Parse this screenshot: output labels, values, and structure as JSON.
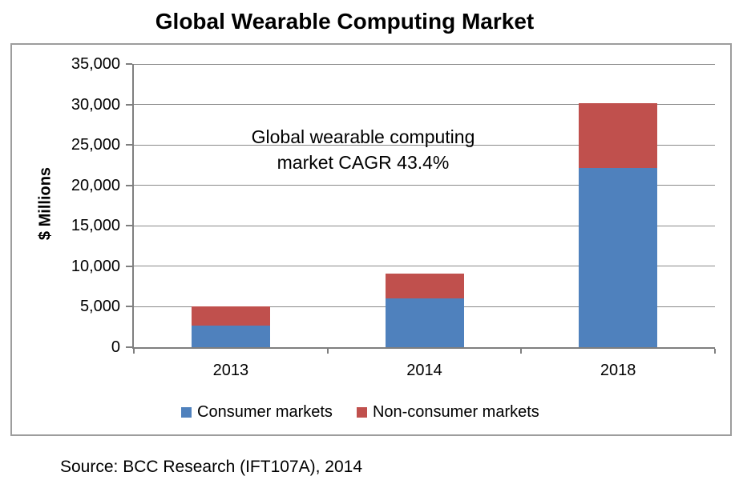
{
  "title": "Global Wearable Computing Market",
  "source": "Source: BCC Research (IFT107A), 2014",
  "chart_data": {
    "type": "bar",
    "stacked": true,
    "title": "Global Wearable Computing Market",
    "categories": [
      "2013",
      "2014",
      "2018"
    ],
    "series": [
      {
        "name": "Consumer markets",
        "color": "#4F81BD",
        "values": [
          2700,
          6000,
          22100
        ]
      },
      {
        "name": "Non-consumer markets",
        "color": "#C0504D",
        "values": [
          2300,
          3100,
          8100
        ]
      }
    ],
    "xlabel": "",
    "ylabel": "$ Millions",
    "ylim": [
      0,
      35000
    ],
    "ytick_step": 5000,
    "ytick_labels": [
      "0",
      "5,000",
      "10,000",
      "15,000",
      "20,000",
      "25,000",
      "30,000",
      "35,000"
    ],
    "grid": true,
    "legend_position": "bottom",
    "annotation": "Global wearable computing market CAGR 43.4%",
    "annotation_lines": [
      "Global wearable computing",
      "market CAGR 43.4%"
    ]
  }
}
